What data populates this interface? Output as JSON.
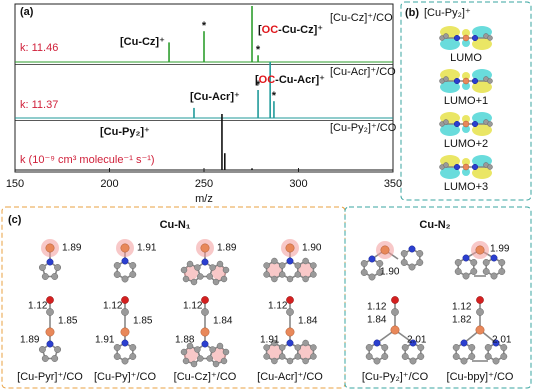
{
  "chart_data": {
    "type": "stem",
    "label": "(a)",
    "xlabel": "m/z",
    "xlim": [
      150,
      350
    ],
    "xticks": [
      150,
      200,
      250,
      300,
      350
    ],
    "ylim": [
      0,
      100
    ],
    "isotope_mark": "*",
    "series": [
      {
        "name": "[Cu-Cz]⁺/CO",
        "color": "#2e9e2e",
        "k_label": "k: 11.46",
        "x": [
          231.5,
          250,
          275.4,
          278.6
        ],
        "values": [
          35,
          55,
          100,
          12
        ],
        "peak_labels": [
          [
            {
              "text": "[Cu-Cz]⁺"
            }
          ],
          [
            {
              "text": "["
            },
            {
              "text": "OC",
              "color": "#e0161b"
            },
            {
              "text": "-Cu-Cz]⁺"
            }
          ]
        ]
      },
      {
        "name": "[Cu-Acr]⁺/CO",
        "color": "#1f9a9a",
        "k_label": "k: 11.37",
        "x": [
          244.7,
          278.6,
          285,
          287
        ],
        "values": [
          18,
          50,
          100,
          30
        ],
        "peak_labels": [
          [
            {
              "text": "[Cu-Acr]⁺"
            }
          ],
          [
            {
              "text": "["
            },
            {
              "text": "OC",
              "color": "#e0161b"
            },
            {
              "text": "-Cu-Acr]⁺"
            }
          ]
        ]
      },
      {
        "name": "[Cu-Py₂]⁺/CO",
        "color": "#111111",
        "k_label": "k (10⁻⁹ cm³ molecule⁻¹ s⁻¹)",
        "x": [
          259.5,
          261,
          275.4
        ],
        "values": [
          100,
          30,
          3
        ],
        "peak_labels": [
          [
            {
              "text": "[Cu-Py₂]⁺"
            }
          ]
        ]
      }
    ]
  },
  "panel_b": {
    "label": "(b)",
    "title": "[Cu-Py₂]⁺",
    "orbitals": [
      "LUMO",
      "LUMO+1",
      "LUMO+2",
      "LUMO+3"
    ]
  },
  "panel_c": {
    "label": "(c)",
    "groups": [
      {
        "title": "Cu-N₁",
        "structures": [
          {
            "name": "[Cu-Pyr]⁺/CO",
            "top": [
              "1.89"
            ],
            "bottom": [
              "1.12",
              "1.85",
              "1.89"
            ]
          },
          {
            "name": "[Cu-Py]⁺/CO",
            "top": [
              "1.91"
            ],
            "bottom": [
              "1.12",
              "1.85",
              "1.91"
            ]
          },
          {
            "name": "[Cu-Cz]⁺/CO",
            "top": [
              "1.89"
            ],
            "bottom": [
              "1.12",
              "1.84",
              "1.88"
            ]
          },
          {
            "name": "[Cu-Acr]⁺/CO",
            "top": [
              "1.90"
            ],
            "bottom": [
              "1.12",
              "1.84",
              "1.91"
            ]
          }
        ]
      },
      {
        "title": "Cu-N₂",
        "structures": [
          {
            "name": "[Cu-Py₂]⁺/CO",
            "top": [
              "1.90"
            ],
            "bottom": [
              "1.12",
              "1.84",
              "2.01"
            ]
          },
          {
            "name": "[Cu-bpy]⁺/CO",
            "top": [
              "1.99"
            ],
            "bottom": [
              "1.12",
              "1.82",
              "2.01"
            ]
          }
        ]
      }
    ]
  }
}
